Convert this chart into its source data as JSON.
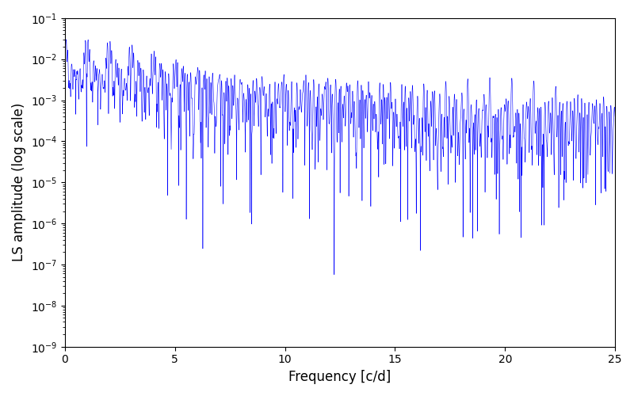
{
  "xlabel": "Frequency [c/d]",
  "ylabel": "LS amplitude (log scale)",
  "line_color": "#0000FF",
  "xlim": [
    0,
    25
  ],
  "ylim": [
    1e-09,
    0.1
  ],
  "figsize": [
    8.0,
    5.0
  ],
  "dpi": 100,
  "n_freq": 10000,
  "freq_max": 25.0,
  "seed": 42,
  "n_nights": 20,
  "obs_per_night": 40,
  "obs_window": 0.13,
  "peak_scale": 0.03,
  "linewidth": 0.4,
  "xticks": [
    0,
    5,
    10,
    15,
    20,
    25
  ]
}
